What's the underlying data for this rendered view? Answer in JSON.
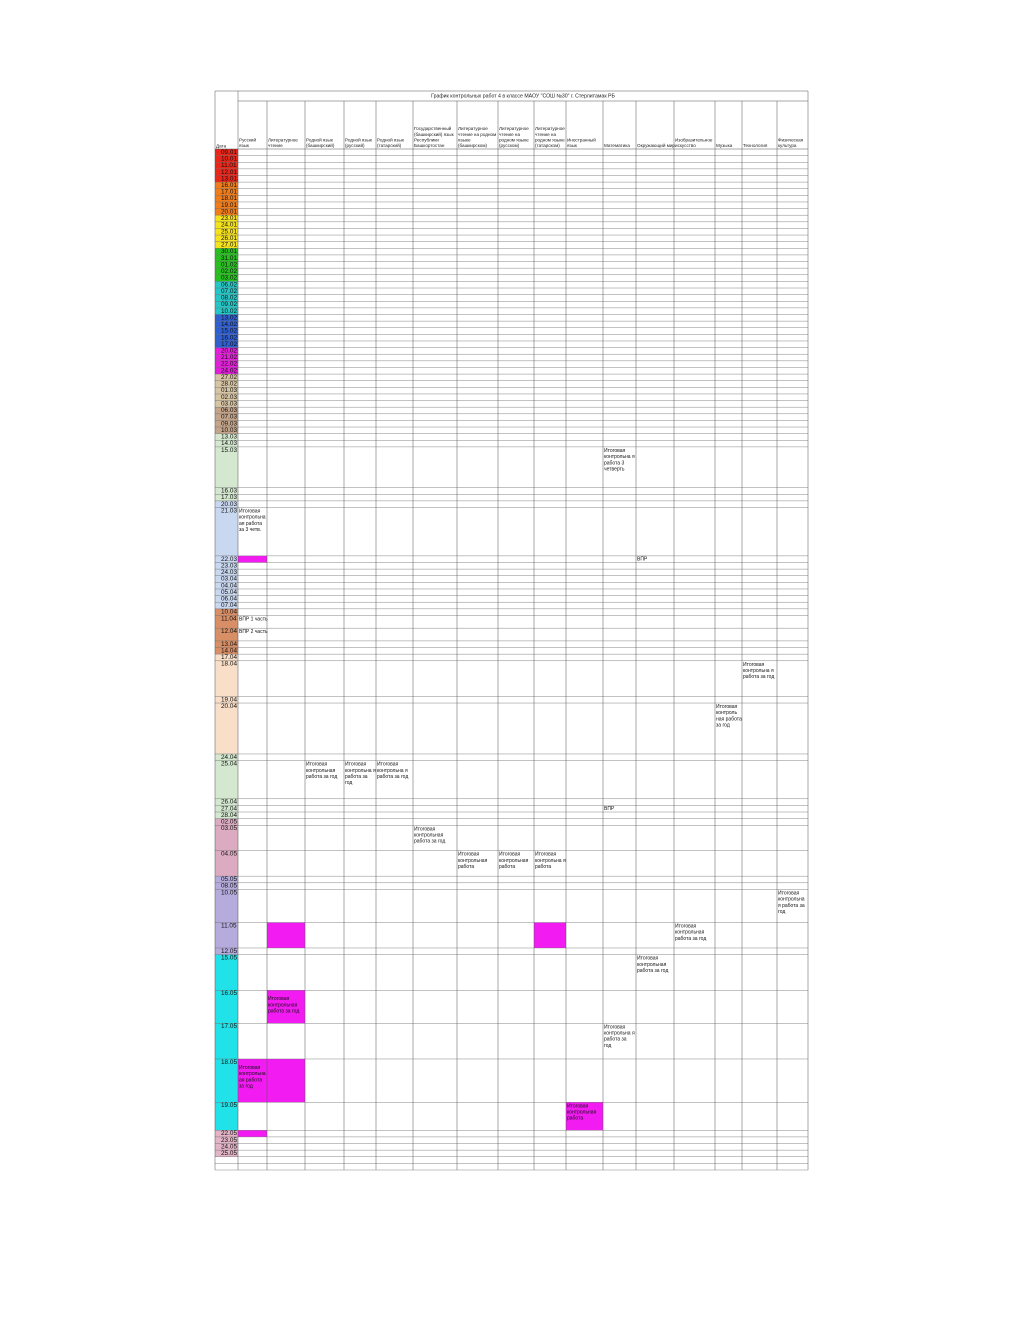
{
  "title": "График контрольных работ 4 в классе МАОУ \"СОШ №30\" г. Стерлитамак РБ",
  "date_header": "Дата",
  "columns": [
    "Русский язык",
    "Литературное чтение",
    "Родной язык (башкирский)",
    "Родной язык (русский)",
    "Родной язык (татарский)",
    "Государственный (башкирский) язык Республики Башкортостан",
    "Литературное чтение на родном языке (башкирском)",
    "Литературное чтение на родном языке (русском)",
    "Литературное чтение на родном языке (татарском)",
    "Иностранный язык",
    "Математика",
    "Окружающий мир",
    "Изобразительное искусство",
    "Музыка",
    "Технология",
    "Физическая культура"
  ],
  "rows": [
    {
      "date": "09.01",
      "color": "#e8261a"
    },
    {
      "date": "10.01",
      "color": "#e8261a"
    },
    {
      "date": "11.01",
      "color": "#e8261a"
    },
    {
      "date": "12.01",
      "color": "#e8261a"
    },
    {
      "date": "13.01",
      "color": "#e8261a"
    },
    {
      "date": "16.01",
      "color": "#f07d1a"
    },
    {
      "date": "17.01",
      "color": "#f07d1a"
    },
    {
      "date": "18.01",
      "color": "#f07d1a"
    },
    {
      "date": "19.01",
      "color": "#f07d1a"
    },
    {
      "date": "20.01",
      "color": "#f07d1a"
    },
    {
      "date": "23.01",
      "color": "#f4e21c"
    },
    {
      "date": "24.01",
      "color": "#f4e21c"
    },
    {
      "date": "25.01",
      "color": "#f4e21c"
    },
    {
      "date": "26.01",
      "color": "#f4e21c"
    },
    {
      "date": "27.01",
      "color": "#f4e21c"
    },
    {
      "date": "30.01",
      "color": "#27c01f"
    },
    {
      "date": "31.01",
      "color": "#27c01f"
    },
    {
      "date": "01.02",
      "color": "#27c01f"
    },
    {
      "date": "02.02",
      "color": "#27c01f"
    },
    {
      "date": "03.02",
      "color": "#27c01f"
    },
    {
      "date": "06.02",
      "color": "#24c6c6"
    },
    {
      "date": "07.02",
      "color": "#24c6c6"
    },
    {
      "date": "08.02",
      "color": "#24c6c6"
    },
    {
      "date": "09.02",
      "color": "#24c6c6"
    },
    {
      "date": "10.02",
      "color": "#24c6c6"
    },
    {
      "date": "13.02",
      "color": "#2f5fd0"
    },
    {
      "date": "14.02",
      "color": "#2f5fd0"
    },
    {
      "date": "15.02",
      "color": "#2f5fd0"
    },
    {
      "date": "16.02",
      "color": "#2f5fd0"
    },
    {
      "date": "17.02",
      "color": "#2f5fd0"
    },
    {
      "date": "20.02",
      "color": "#e21fd9"
    },
    {
      "date": "21.02",
      "color": "#e21fd9"
    },
    {
      "date": "22.02",
      "color": "#e21fd9"
    },
    {
      "date": "24.02",
      "color": "#e21fd9"
    },
    {
      "date": "27.02",
      "color": "#d6c4a3"
    },
    {
      "date": "28.02",
      "color": "#d6c4a3"
    },
    {
      "date": "01.03",
      "color": "#d6c4a3"
    },
    {
      "date": "02.03",
      "color": "#d6c4a3"
    },
    {
      "date": "03.03",
      "color": "#d6c4a3"
    },
    {
      "date": "06.03",
      "color": "#c4a58a"
    },
    {
      "date": "07.03",
      "color": "#c4a58a"
    },
    {
      "date": "09.03",
      "color": "#c4a58a"
    },
    {
      "date": "10.03",
      "color": "#c4a58a"
    },
    {
      "date": "13.03",
      "color": "#d3e8cf"
    },
    {
      "date": "14.03",
      "color": "#d3e8cf"
    },
    {
      "date": "15.03",
      "color": "#d3e8cf",
      "tall": 32,
      "cells": {
        "10": "Итоговая контрольна я работа 3 четверть"
      }
    },
    {
      "date": "16.03",
      "color": "#d3e8cf"
    },
    {
      "date": "17.03",
      "color": "#d3e8cf"
    },
    {
      "date": "20.03",
      "color": "#c9d8f1"
    },
    {
      "date": "21.03",
      "color": "#c9d8f1",
      "tall": 38,
      "cells": {
        "0": "Итоговая контрольна ая работа за 3 четв."
      }
    },
    {
      "date": "22.03",
      "color": "#c9d8f1",
      "fills": {
        "0": "#f21cf2"
      },
      "cells": {
        "11": "ВПР"
      }
    },
    {
      "date": "23.03",
      "color": "#c9d8f1"
    },
    {
      "date": "24.03",
      "color": "#c9d8f1"
    },
    {
      "date": "03.04",
      "color": "#c9d8f1"
    },
    {
      "date": "04.04",
      "color": "#c9d8f1"
    },
    {
      "date": "05.04",
      "color": "#c9d8f1"
    },
    {
      "date": "06.04",
      "color": "#c9d8f1"
    },
    {
      "date": "07.04",
      "color": "#c9d8f1"
    },
    {
      "date": "10.04",
      "color": "#d98f66"
    },
    {
      "date": "11.04",
      "color": "#d98f66",
      "tall": 10,
      "cells": {
        "0": "ВПР 1 часть"
      }
    },
    {
      "date": "12.04",
      "color": "#d98f66",
      "tall": 10,
      "cells": {
        "0": "ВПР 2 часть"
      }
    },
    {
      "date": "13.04",
      "color": "#d98f66"
    },
    {
      "date": "14.04",
      "color": "#d98f66"
    },
    {
      "date": "17.04",
      "color": "#f9dfc8"
    },
    {
      "date": "18.04",
      "color": "#f9dfc8",
      "tall": 28,
      "cells": {
        "14": "Итоговая контрольна я работа за год"
      }
    },
    {
      "date": "19.04",
      "color": "#f9dfc8"
    },
    {
      "date": "20.04",
      "color": "#f9dfc8",
      "tall": 40,
      "cells": {
        "13": "Итоговая контроль ная работа за год"
      }
    },
    {
      "date": "24.04",
      "color": "#d3e8cf"
    },
    {
      "date": "25.04",
      "color": "#d3e8cf",
      "tall": 30,
      "cells": {
        "2": "Итоговая контрольная работа за год",
        "3": "Итоговая контрольна я работа за год",
        "4": "Итоговая контрольна я работа за год"
      }
    },
    {
      "date": "26.04",
      "color": "#d3e8cf"
    },
    {
      "date": "27.04",
      "color": "#d3e8cf",
      "cells": {
        "10": "ВПР"
      }
    },
    {
      "date": "28.04",
      "color": "#d3e8cf"
    },
    {
      "date": "02.05",
      "color": "#dcabc2"
    },
    {
      "date": "03.05",
      "color": "#dcabc2",
      "tall": 20,
      "cells": {
        "5": "Итоговая контрольная работа за год"
      }
    },
    {
      "date": "04.05",
      "color": "#dcabc2",
      "tall": 20,
      "cells": {
        "6": "Итоговая контрольная работа",
        "7": "Итоговая контрольная работа",
        "8": "Итоговая контрольна я работа"
      }
    },
    {
      "date": "05.05",
      "color": "#b5abdd"
    },
    {
      "date": "08.05",
      "color": "#b5abdd"
    },
    {
      "date": "10.05",
      "color": "#b5abdd",
      "tall": 26,
      "cells": {
        "15": "Итоговая контрольна я работа за год"
      }
    },
    {
      "date": "11.05",
      "color": "#b5abdd",
      "tall": 20,
      "fills": {
        "1": "#f21cf2",
        "8": "#f21cf2"
      },
      "cells": {
        "12": "Итоговая контрольная работа за год"
      }
    },
    {
      "date": "12.05",
      "color": "#b5abdd"
    },
    {
      "date": "15.05",
      "color": "#21e2e8",
      "tall": 28,
      "cells": {
        "11": "Итоговая контрольная работа за год"
      }
    },
    {
      "date": "16.05",
      "color": "#21e2e8",
      "tall": 26,
      "fills": {
        "1": "#f21cf2"
      },
      "cells": {
        "1": "Итоговая контрольная работа за год"
      }
    },
    {
      "date": "17.05",
      "color": "#21e2e8",
      "tall": 28,
      "cells": {
        "10": "Итоговая контрольна я работа за год"
      }
    },
    {
      "date": "18.05",
      "color": "#21e2e8",
      "tall": 34,
      "fills": {
        "0": "#f21cf2",
        "1": "#f21cf2"
      },
      "cells": {
        "0": "Итоговая контрольна ая работа за год"
      }
    },
    {
      "date": "19.05",
      "color": "#21e2e8",
      "tall": 22,
      "fills": {
        "9": "#f21cf2"
      },
      "cells": {
        "9": "Итоговая контрольная работа"
      }
    },
    {
      "date": "22.05",
      "color": "#e3b3c6",
      "fills": {
        "0": "#f21cf2"
      }
    },
    {
      "date": "23.05",
      "color": "#e3b3c6"
    },
    {
      "date": "24.05",
      "color": "#e3b3c6"
    },
    {
      "date": "25.05",
      "color": "#e3b3c6"
    },
    {
      "date": "",
      "color": "#ffffff"
    },
    {
      "date": "",
      "color": "#ffffff"
    }
  ]
}
